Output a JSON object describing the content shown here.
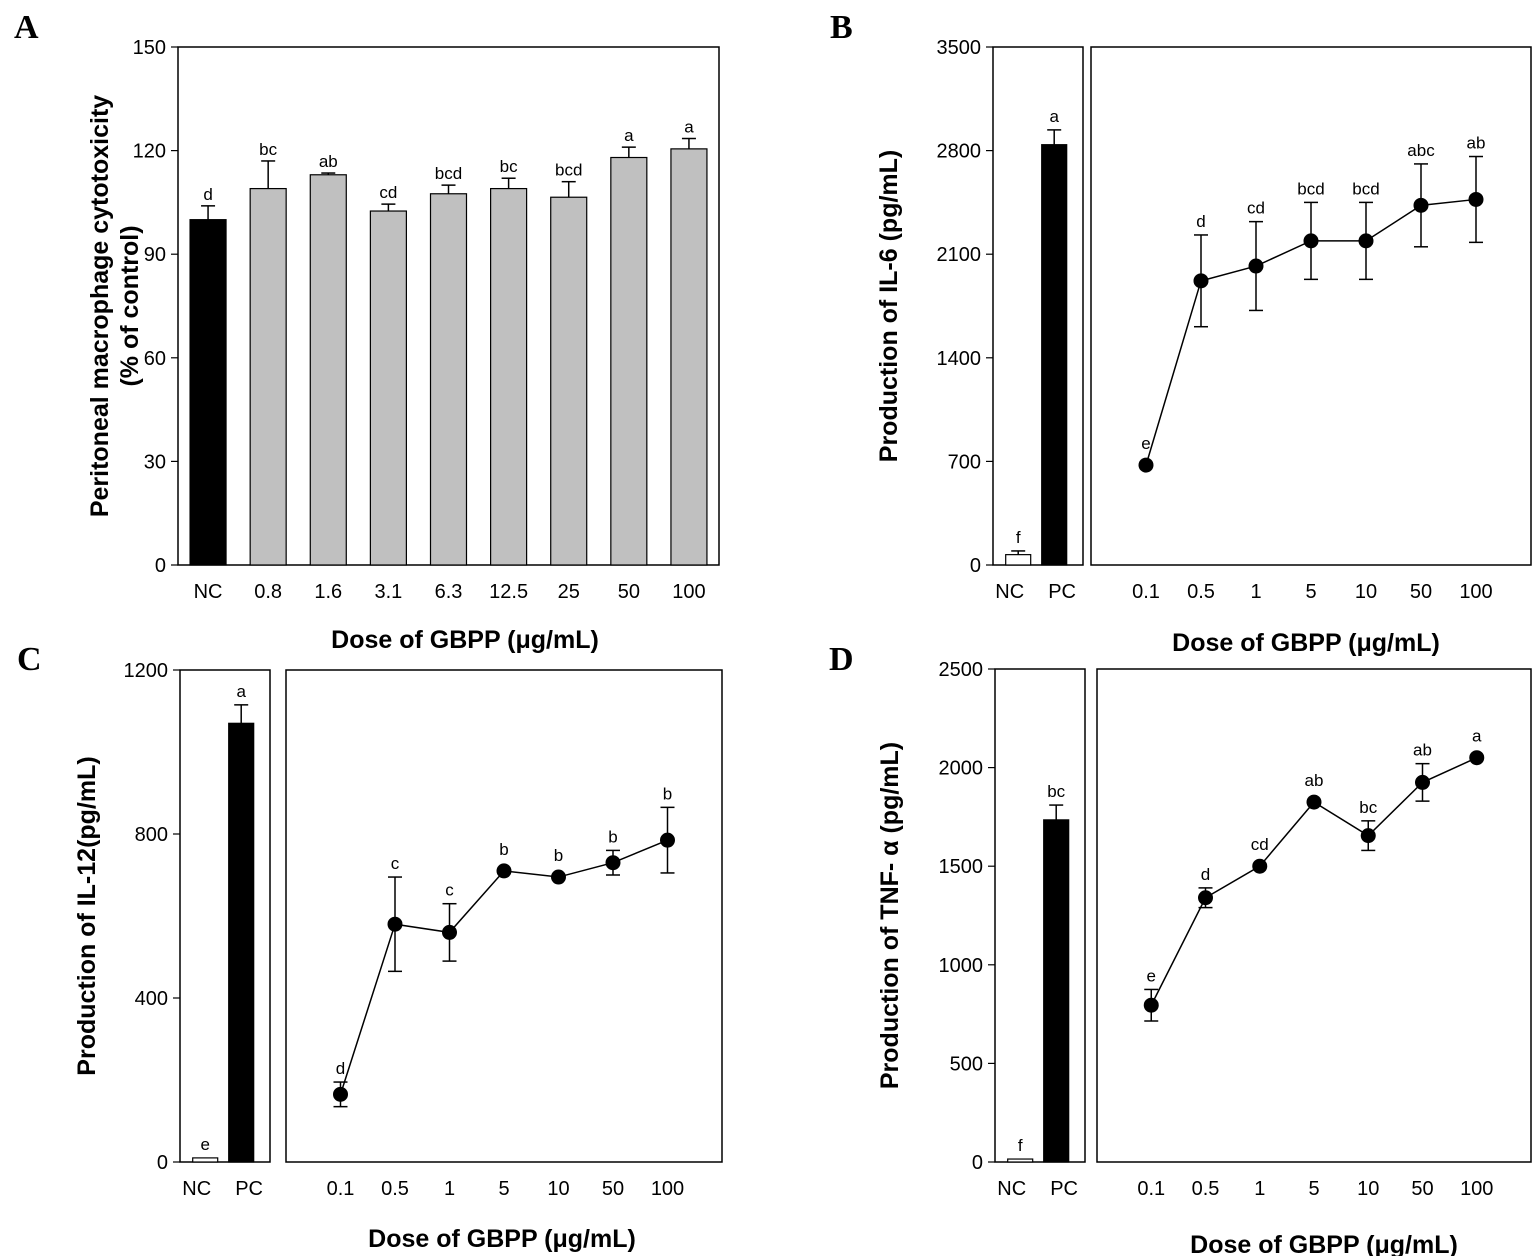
{
  "chart_data": [
    {
      "panel": "A",
      "type": "bar",
      "ylabel_line1": "Peritoneal macrophage cytotoxicity",
      "ylabel_line2": "(% of control)",
      "xlabel": "Dose of GBPP (μg/mL)",
      "ylim": [
        0,
        150
      ],
      "yticks": [
        "0",
        "30",
        "60",
        "90",
        "120",
        "150"
      ],
      "categories": [
        "NC",
        "0.8",
        "1.6",
        "3.1",
        "6.3",
        "12.5",
        "25",
        "50",
        "100"
      ],
      "values": [
        100,
        109,
        113,
        102.5,
        107.5,
        109,
        106.5,
        118,
        120.5
      ],
      "errors": [
        4,
        8,
        0.5,
        2,
        2.5,
        3,
        4.5,
        3,
        3
      ],
      "letters": [
        "d",
        "bc",
        "ab",
        "cd",
        "bcd",
        "bc",
        "bcd",
        "a",
        "a"
      ],
      "colors": [
        "#000000",
        "#c0c0c0",
        "#c0c0c0",
        "#c0c0c0",
        "#c0c0c0",
        "#c0c0c0",
        "#c0c0c0",
        "#c0c0c0",
        "#c0c0c0"
      ]
    },
    {
      "panel": "B",
      "type": "bar+line",
      "ylabel": "Production of IL-6 (pg/mL)",
      "xlabel": "Dose of GBPP (μg/mL)",
      "ylim": [
        0,
        3500
      ],
      "yticks": [
        "0",
        "700",
        "1400",
        "2100",
        "2800",
        "3500"
      ],
      "controls": {
        "categories": [
          "NC",
          "PC"
        ],
        "values": [
          70,
          2840
        ],
        "errors": [
          25,
          100
        ],
        "letters": [
          "f",
          "a"
        ],
        "fills": [
          "#ffffff",
          "#000000"
        ]
      },
      "series": {
        "x": [
          "0.1",
          "0.5",
          "1",
          "5",
          "10",
          "50",
          "100"
        ],
        "y": [
          675,
          1920,
          2020,
          2190,
          2190,
          2430,
          2470
        ],
        "errors": [
          0,
          310,
          300,
          260,
          260,
          280,
          290
        ],
        "letters": [
          "e",
          "d",
          "cd",
          "bcd",
          "bcd",
          "abc",
          "ab"
        ]
      }
    },
    {
      "panel": "C",
      "type": "bar+line",
      "ylabel": "Production of IL-12(pg/mL)",
      "xlabel": "Dose of GBPP (μg/mL)",
      "ylim": [
        0,
        1200
      ],
      "yticks": [
        "0",
        "400",
        "800",
        "1200"
      ],
      "controls": {
        "categories": [
          "NC",
          "PC"
        ],
        "values": [
          10,
          1070
        ],
        "errors": [
          0,
          45
        ],
        "letters": [
          "e",
          "a"
        ],
        "fills": [
          "#ffffff",
          "#000000"
        ]
      },
      "series": {
        "x": [
          "0.1",
          "0.5",
          "1",
          "5",
          "10",
          "50",
          "100"
        ],
        "y": [
          165,
          580,
          560,
          710,
          695,
          730,
          785
        ],
        "errors": [
          30,
          115,
          70,
          0,
          0,
          30,
          80
        ],
        "letters": [
          "d",
          "c",
          "c",
          "b",
          "b",
          "b",
          "b"
        ]
      }
    },
    {
      "panel": "D",
      "type": "bar+line",
      "ylabel": "Production of TNF- α (pg/mL)",
      "xlabel": "Dose of GBPP (μg/mL)",
      "ylim": [
        0,
        2500
      ],
      "yticks": [
        "0",
        "500",
        "1000",
        "1500",
        "2000",
        "2500"
      ],
      "controls": {
        "categories": [
          "NC",
          "PC"
        ],
        "values": [
          15,
          1735
        ],
        "errors": [
          0,
          75
        ],
        "letters": [
          "f",
          "bc"
        ],
        "fills": [
          "#ffffff",
          "#000000"
        ]
      },
      "series": {
        "x": [
          "0.1",
          "0.5",
          "1",
          "5",
          "10",
          "50",
          "100"
        ],
        "y": [
          795,
          1340,
          1500,
          1825,
          1655,
          1925,
          2050
        ],
        "errors": [
          80,
          50,
          0,
          0,
          75,
          95,
          0
        ],
        "letters": [
          "e",
          "d",
          "cd",
          "ab",
          "bc",
          "ab",
          "a"
        ]
      }
    }
  ]
}
